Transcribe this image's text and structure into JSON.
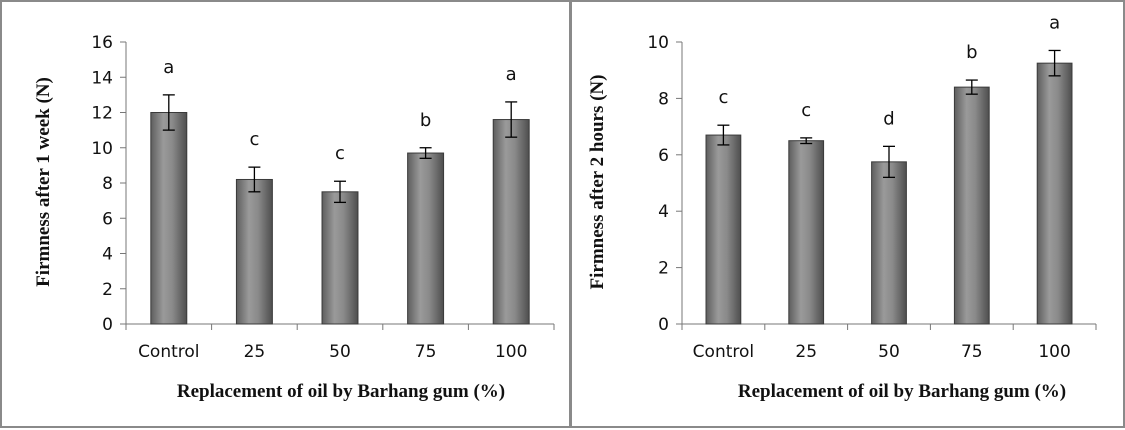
{
  "chart_data": [
    {
      "type": "bar",
      "title": "",
      "xlabel": "Replacement of oil by Barhang gum (%)",
      "ylabel": "Firmness after 1 week (N)",
      "ylim": [
        0,
        16
      ],
      "yticks": [
        0,
        2,
        4,
        6,
        8,
        10,
        12,
        14,
        16
      ],
      "categories": [
        "Control",
        "25",
        "50",
        "75",
        "100"
      ],
      "values": [
        12.0,
        8.2,
        7.5,
        9.7,
        11.6
      ],
      "errors": [
        1.0,
        0.7,
        0.6,
        0.3,
        1.0
      ],
      "letters": [
        "a",
        "c",
        "c",
        "b",
        "a"
      ],
      "grid": false,
      "bar_color": "#808080"
    },
    {
      "type": "bar",
      "title": "",
      "xlabel": "Replacement of oil by Barhang gum (%)",
      "ylabel": "Firmness after 2 hours (N)",
      "ylim": [
        0,
        10
      ],
      "yticks": [
        0,
        2,
        4,
        6,
        8,
        10
      ],
      "categories": [
        "Control",
        "25",
        "50",
        "75",
        "100"
      ],
      "values": [
        6.7,
        6.5,
        5.75,
        8.4,
        9.25
      ],
      "errors": [
        0.35,
        0.1,
        0.55,
        0.25,
        0.45
      ],
      "letters": [
        "c",
        "c",
        "d",
        "b",
        "a"
      ],
      "grid": false,
      "bar_color": "#808080"
    }
  ]
}
